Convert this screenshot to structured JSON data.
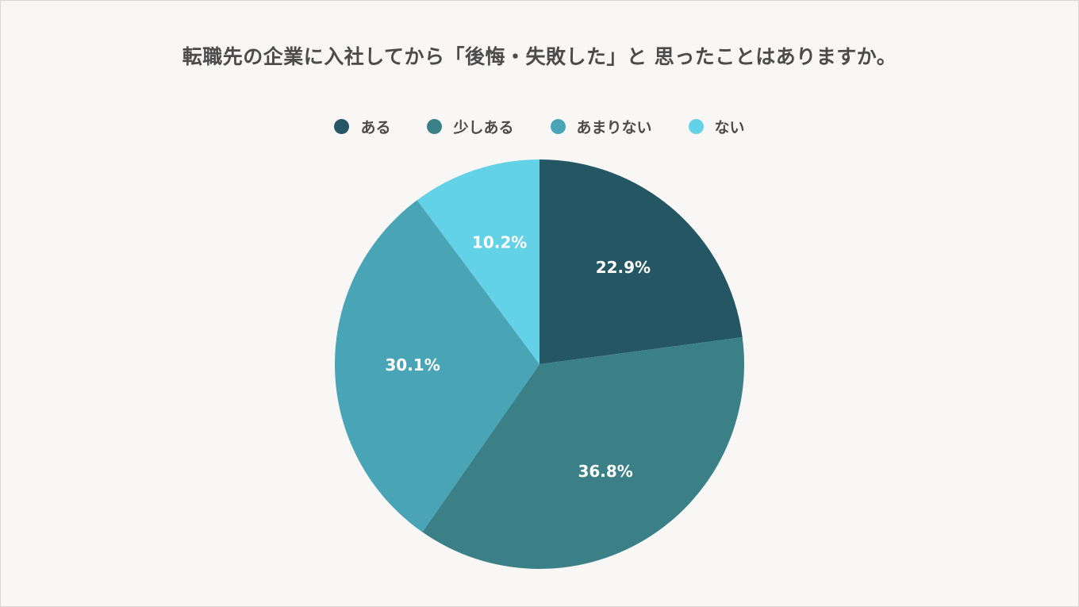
{
  "chart_data": {
    "type": "pie",
    "title": "転職先の企業に入社してから「後悔・失敗した」と 思ったことはありますか。",
    "categories": [
      "ある",
      "少しある",
      "あまりない",
      "ない"
    ],
    "values": [
      22.9,
      36.8,
      30.1,
      10.2
    ],
    "value_labels": [
      "22.9%",
      "36.8%",
      "30.1%",
      "10.2%"
    ],
    "colors": [
      "#245763",
      "#3b7f87",
      "#49a4b6",
      "#63d2e6"
    ],
    "legend_position": "top-center",
    "start_angle": "12-o'clock",
    "direction": "clockwise"
  }
}
